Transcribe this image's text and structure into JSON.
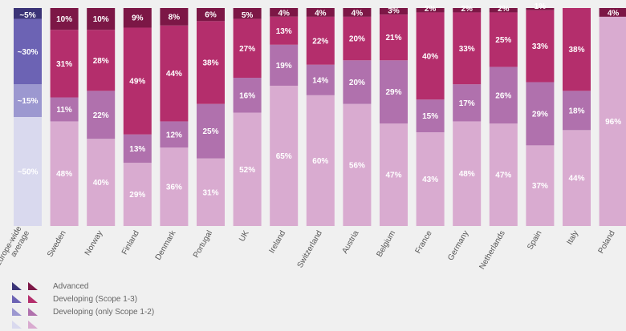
{
  "chart_data": {
    "type": "bar",
    "stacked": true,
    "percent": true,
    "categories": [
      "Europe-wide\naverage",
      "Sweden",
      "Norway",
      "Finland",
      "Denmark",
      "Portugal",
      "UK",
      "Ireland",
      "Switzerland",
      "Austria",
      "Belgium",
      "France",
      "Germany",
      "Netherlands",
      "Spain",
      "Italy",
      "Poland"
    ],
    "series": [
      {
        "name": "",
        "values": [
          50,
          48,
          40,
          29,
          36,
          31,
          52,
          65,
          60,
          56,
          47,
          43,
          48,
          47,
          37,
          44,
          96
        ],
        "labels": [
          "~50%",
          "48%",
          "40%",
          "29%",
          "36%",
          "31%",
          "52%",
          "65%",
          "60%",
          "56%",
          "47%",
          "43%",
          "48%",
          "47%",
          "37%",
          "44%",
          "96%"
        ]
      },
      {
        "name": "Developing (only Scope 1-2)",
        "values": [
          15,
          11,
          22,
          13,
          12,
          25,
          16,
          19,
          14,
          20,
          29,
          15,
          17,
          26,
          29,
          18,
          0
        ],
        "labels": [
          "~15%",
          "11%",
          "22%",
          "13%",
          "12%",
          "25%",
          "16%",
          "19%",
          "14%",
          "20%",
          "29%",
          "15%",
          "17%",
          "26%",
          "29%",
          "18%",
          ""
        ]
      },
      {
        "name": "Developing (Scope 1-3)",
        "values": [
          30,
          31,
          28,
          49,
          44,
          38,
          27,
          13,
          22,
          20,
          21,
          40,
          33,
          25,
          33,
          38,
          0
        ],
        "labels": [
          "~30%",
          "31%",
          "28%",
          "49%",
          "44%",
          "38%",
          "27%",
          "13%",
          "22%",
          "20%",
          "21%",
          "40%",
          "33%",
          "25%",
          "33%",
          "38%",
          ""
        ]
      },
      {
        "name": "Advanced",
        "values": [
          5,
          10,
          10,
          9,
          8,
          6,
          5,
          4,
          4,
          4,
          3,
          2,
          2,
          2,
          1,
          0,
          4
        ],
        "labels": [
          "~5%",
          "10%",
          "10%",
          "9%",
          "8%",
          "6%",
          "5%",
          "4%",
          "4%",
          "4%",
          "3%",
          "2%",
          "2%",
          "2%",
          "1%",
          "",
          "4%"
        ]
      }
    ],
    "colors": {
      "average": [
        "#d9d9ee",
        "#9c98d0",
        "#6c63b4",
        "#3b3477"
      ],
      "countries": [
        "#d9abd0",
        "#b071ad",
        "#b42e6c",
        "#7c1746"
      ]
    },
    "legend": {
      "position": "bottom-left",
      "items": [
        {
          "label": "Advanced",
          "colors": [
            "#3b3477",
            "#7c1746"
          ]
        },
        {
          "label": "Developing (Scope 1-3)",
          "colors": [
            "#6c63b4",
            "#b42e6c"
          ]
        },
        {
          "label": "Developing (only Scope 1-2)",
          "colors": [
            "#9c98d0",
            "#b071ad"
          ]
        },
        {
          "label": "",
          "colors": [
            "#d9d9ee",
            "#d9abd0"
          ]
        }
      ]
    },
    "ylim": [
      0,
      100
    ],
    "grid": false
  }
}
